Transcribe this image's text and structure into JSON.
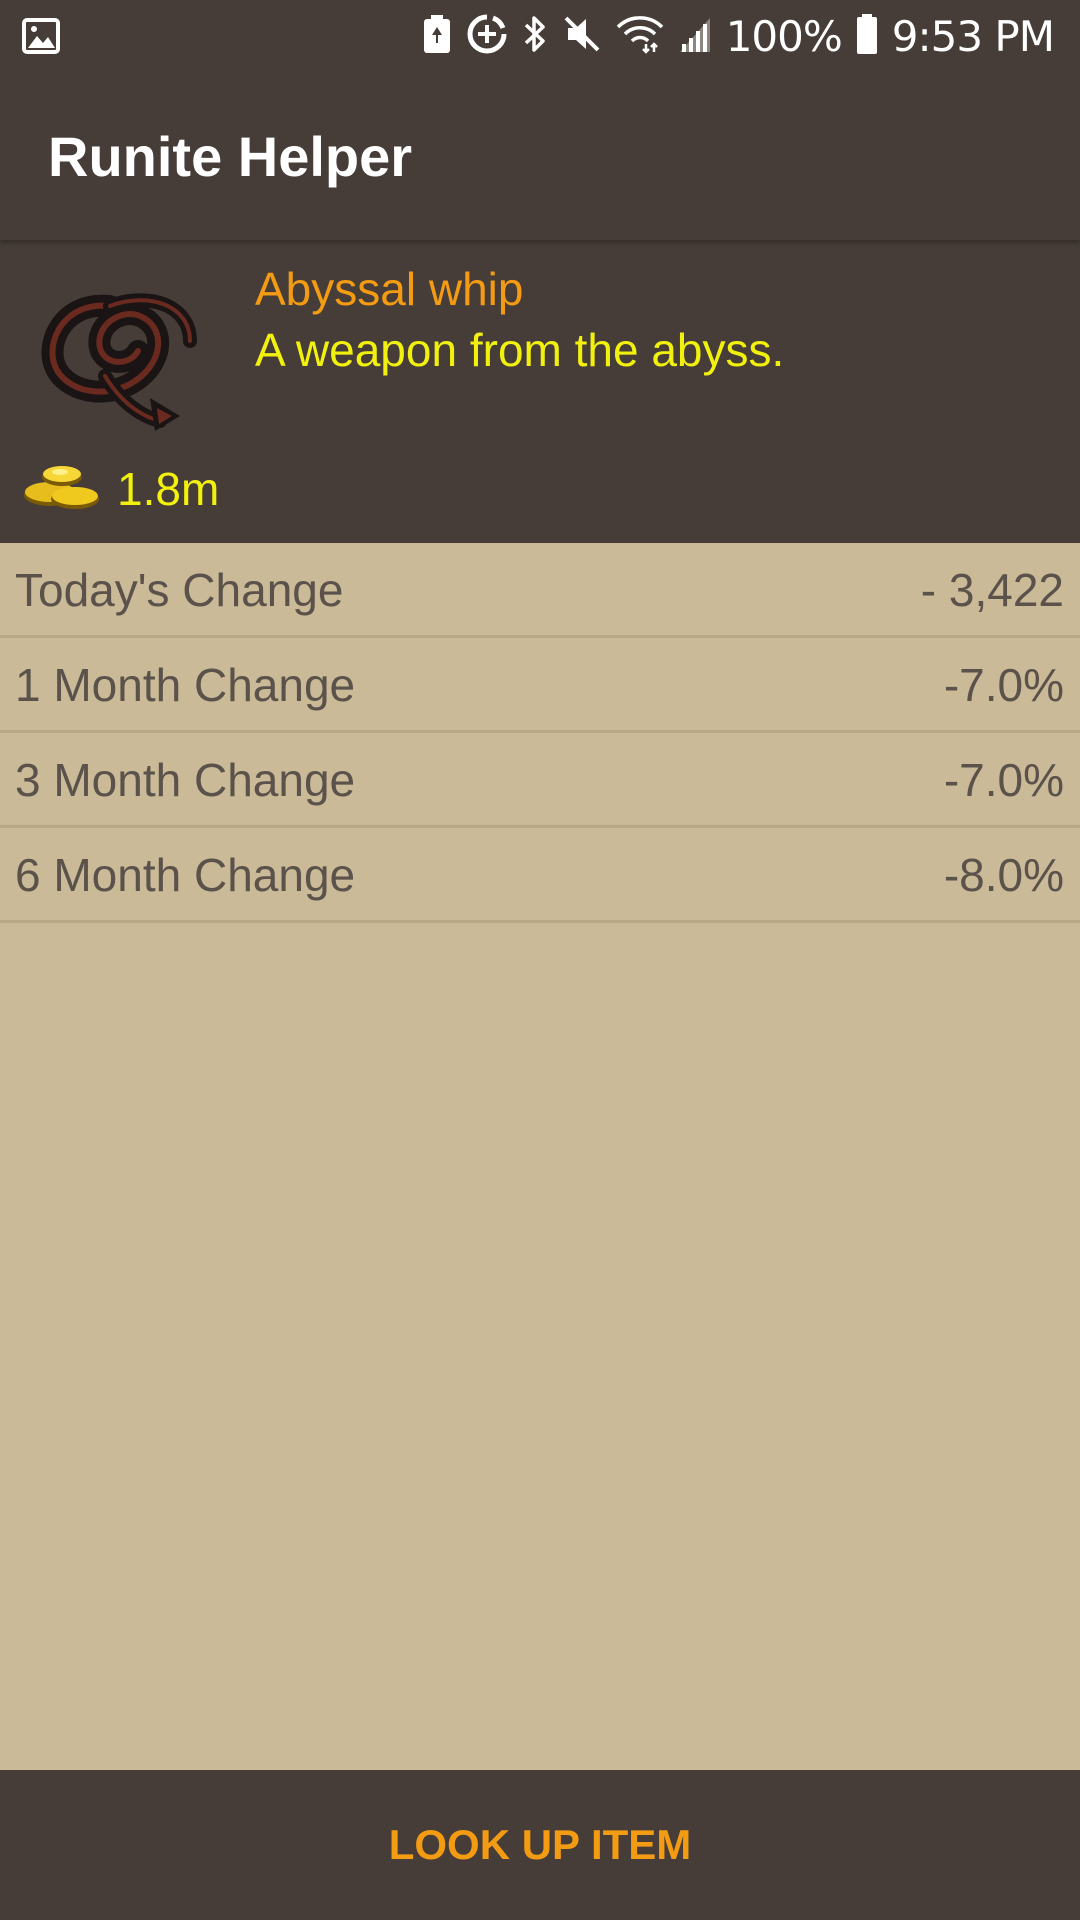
{
  "status_bar": {
    "battery_percent": "100%",
    "time": "9:53 PM",
    "icons": [
      "image-notification-icon",
      "battery-saver-icon",
      "data-saver-icon",
      "bluetooth-icon",
      "mute-icon",
      "wifi-icon",
      "cell-signal-icon",
      "battery-icon"
    ]
  },
  "app_bar": {
    "title": "Runite Helper"
  },
  "item": {
    "name": "Abyssal whip",
    "description": "A weapon from the abyss.",
    "price": "1.8m",
    "icon": "abyssal-whip-icon",
    "price_icon": "coins-icon"
  },
  "stats": [
    {
      "label": "Today's Change",
      "value": "- 3,422"
    },
    {
      "label": "1 Month Change",
      "value": "-7.0%"
    },
    {
      "label": "3 Month Change",
      "value": "-7.0%"
    },
    {
      "label": "6 Month Change",
      "value": "-8.0%"
    }
  ],
  "footer": {
    "button_label": "LOOK UP ITEM"
  },
  "colors": {
    "bar_background": "#463d38",
    "content_background": "#cbba97",
    "accent_orange": "#f39b13",
    "accent_yellow": "#f2f10e",
    "stat_text": "#5a524b"
  }
}
